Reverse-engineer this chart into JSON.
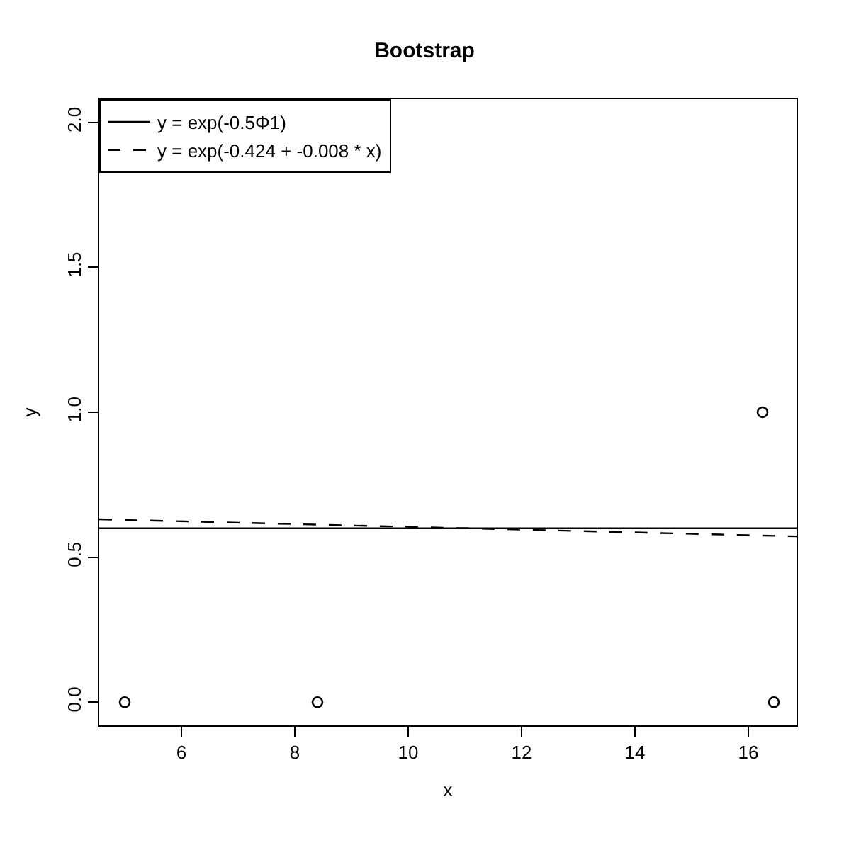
{
  "chart_data": {
    "type": "scatter",
    "title": "Bootstrap",
    "xlabel": "x",
    "ylabel": "y",
    "xlim": [
      4.55,
      16.85
    ],
    "ylim": [
      -0.08,
      2.08
    ],
    "xticks": [
      6,
      8,
      10,
      12,
      14,
      16
    ],
    "yticks": [
      {
        "value": 0,
        "label": "0.0"
      },
      {
        "value": 0.5,
        "label": "0.5"
      },
      {
        "value": 1,
        "label": "1.0"
      },
      {
        "value": 1.5,
        "label": "1.5"
      },
      {
        "value": 2,
        "label": "2.0"
      }
    ],
    "legend": "top left",
    "series": [
      {
        "marker": "circle",
        "color": "#000000",
        "x": [
          5.0,
          8.4,
          16.25,
          16.45
        ],
        "values": [
          0,
          0,
          1,
          0
        ]
      },
      {
        "type": "line",
        "name": "y = exp(-0.5Φ1)",
        "line_style": "solid",
        "color": "#000000",
        "x": [
          4.55,
          16.85
        ],
        "values": [
          0.6,
          0.6
        ]
      },
      {
        "type": "line",
        "name": "y = exp(-0.424 + -0.008 * x)",
        "line_style": "dashed",
        "color": "#000000",
        "x": [
          4.55,
          16.85
        ],
        "values": [
          0.631,
          0.572
        ]
      }
    ]
  }
}
